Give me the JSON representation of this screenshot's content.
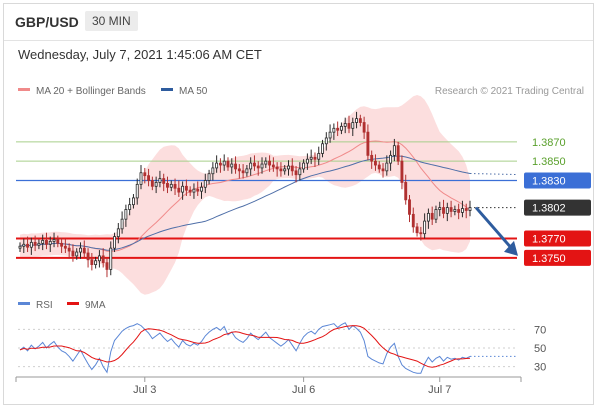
{
  "header": {
    "symbol": "GBP/USD",
    "timeframe": "30 MIN",
    "datetime": "Wednesday, July 7, 2021 1:45:06 AM CET"
  },
  "legend": {
    "items": [
      {
        "label": "MA 20 + Bollinger Bands",
        "color": "#f08a8a"
      },
      {
        "label": "MA 50",
        "color": "#2e5c9e"
      }
    ],
    "credit": "Research © 2021 Trading Central"
  },
  "colors": {
    "up": "#2a2a2a",
    "down": "#b03030",
    "band_fill": "#fbd3d3",
    "ma20": "#f08a8a",
    "ma50": "#4f6fa8",
    "green": "#a6cf8a",
    "blue": "#3b6fd6",
    "red": "#e31414",
    "current": "#333333",
    "arrow": "#2e5c9e",
    "rsi": "#5b87d6",
    "ma9": "#e31414"
  },
  "chart_data": [
    {
      "type": "candlestick",
      "title": "GBP/USD",
      "y_range": [
        1.3725,
        1.3905
      ],
      "x_tick_labels": [
        "Jul 3",
        "Jul 6",
        "Jul 7"
      ],
      "price_levels": [
        {
          "value": 1.387,
          "label": "1.3870",
          "style": "line",
          "color": "#a6cf8a",
          "label_color": "#5aa02c"
        },
        {
          "value": 1.385,
          "label": "1.3850",
          "style": "line",
          "color": "#a6cf8a",
          "label_color": "#5aa02c"
        },
        {
          "value": 1.383,
          "label": "1.3830",
          "style": "box",
          "color": "#3b6fd6"
        },
        {
          "value": 1.3802,
          "label": "1.3802",
          "style": "box",
          "color": "#333333",
          "current": true
        },
        {
          "value": 1.377,
          "label": "1.3770",
          "style": "box",
          "color": "#e31414"
        },
        {
          "value": 1.375,
          "label": "1.3750",
          "style": "box",
          "color": "#e31414"
        }
      ],
      "close_series": [
        1.3762,
        1.3764,
        1.3761,
        1.3766,
        1.3763,
        1.3765,
        1.3768,
        1.3764,
        1.3767,
        1.3769,
        1.3765,
        1.3762,
        1.376,
        1.3757,
        1.3752,
        1.3756,
        1.376,
        1.3755,
        1.3748,
        1.3743,
        1.3747,
        1.3752,
        1.3745,
        1.3738,
        1.376,
        1.3772,
        1.378,
        1.379,
        1.38,
        1.3805,
        1.3812,
        1.3826,
        1.3838,
        1.3835,
        1.383,
        1.3824,
        1.3828,
        1.3832,
        1.3827,
        1.3823,
        1.3826,
        1.3822,
        1.3818,
        1.3824,
        1.382,
        1.3818,
        1.3821,
        1.3819,
        1.3823,
        1.383,
        1.3837,
        1.3843,
        1.3848,
        1.3846,
        1.385,
        1.3844,
        1.3847,
        1.3842,
        1.384,
        1.3838,
        1.3842,
        1.3848,
        1.3845,
        1.3843,
        1.3847,
        1.385,
        1.3846,
        1.3844,
        1.3842,
        1.384,
        1.3842,
        1.3845,
        1.384,
        1.3836,
        1.3842,
        1.3848,
        1.3852,
        1.3854,
        1.3852,
        1.3858,
        1.3868,
        1.3874,
        1.388,
        1.3884,
        1.3882,
        1.3886,
        1.3889,
        1.3884,
        1.389,
        1.3894,
        1.389,
        1.388,
        1.3856,
        1.385,
        1.3846,
        1.3842,
        1.384,
        1.3848,
        1.3856,
        1.3866,
        1.385,
        1.3828,
        1.381,
        1.3795,
        1.3782,
        1.3776,
        1.3775,
        1.3788,
        1.3796,
        1.379,
        1.38,
        1.3802,
        1.3796,
        1.3802,
        1.3798,
        1.38,
        1.3797,
        1.3801,
        1.3799,
        1.3802
      ]
    },
    {
      "type": "line",
      "title": "RSI",
      "y_range": [
        20,
        80
      ],
      "ticks": [
        70,
        50,
        30
      ],
      "series": [
        {
          "name": "RSI",
          "color": "#5b87d6"
        },
        {
          "name": "9MA",
          "color": "#e31414"
        }
      ],
      "rsi_values": [
        48,
        51,
        47,
        53,
        49,
        52,
        56,
        50,
        54,
        57,
        51,
        47,
        45,
        41,
        36,
        42,
        48,
        40,
        33,
        27,
        32,
        39,
        30,
        24,
        46,
        58,
        63,
        68,
        71,
        73,
        74,
        76,
        74,
        70,
        66,
        60,
        63,
        66,
        61,
        57,
        60,
        55,
        51,
        58,
        54,
        52,
        55,
        53,
        57,
        63,
        67,
        70,
        72,
        69,
        73,
        64,
        67,
        61,
        58,
        56,
        60,
        66,
        62,
        59,
        63,
        67,
        61,
        58,
        55,
        52,
        55,
        59,
        53,
        47,
        55,
        62,
        66,
        68,
        65,
        70,
        73,
        74,
        75,
        76,
        72,
        75,
        77,
        70,
        74,
        71,
        67,
        58,
        41,
        38,
        36,
        34,
        33,
        44,
        51,
        55,
        41,
        32,
        28,
        26,
        24,
        23,
        23,
        33,
        40,
        35,
        39,
        41,
        36,
        40,
        38,
        39,
        37,
        40,
        39,
        41
      ]
    }
  ]
}
